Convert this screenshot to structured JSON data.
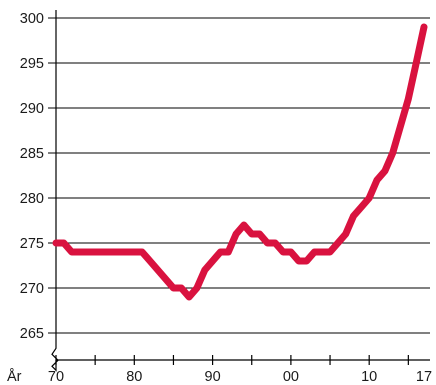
{
  "chart_data": {
    "type": "line",
    "title": "",
    "xlabel": "År",
    "ylabel": "",
    "x_tick_labels": [
      "70",
      "80",
      "90",
      "00",
      "10",
      "17"
    ],
    "x_tick_years": [
      1970,
      1980,
      1990,
      2000,
      2010,
      2017
    ],
    "y_ticks": [
      265,
      270,
      275,
      280,
      285,
      290,
      295,
      300
    ],
    "ylim": [
      262,
      300
    ],
    "xlim": [
      1970,
      2017
    ],
    "y_axis_break": true,
    "grid": "horizontal",
    "line_color": "#d9123f",
    "series": [
      {
        "x": [
          1970,
          1971,
          1972,
          1973,
          1974,
          1975,
          1976,
          1977,
          1978,
          1979,
          1980,
          1981,
          1982,
          1983,
          1984,
          1985,
          1986,
          1987,
          1988,
          1989,
          1990,
          1991,
          1992,
          1993,
          1994,
          1995,
          1996,
          1997,
          1998,
          1999,
          2000,
          2001,
          2002,
          2003,
          2004,
          2005,
          2006,
          2007,
          2008,
          2009,
          2010,
          2011,
          2012,
          2013,
          2014,
          2015,
          2016,
          2017
        ],
        "values": [
          275,
          275,
          274,
          274,
          274,
          274,
          274,
          274,
          274,
          274,
          274,
          274,
          273,
          272,
          271,
          270,
          270,
          269,
          270,
          272,
          273,
          274,
          274,
          276,
          277,
          276,
          276,
          275,
          275,
          274,
          274,
          273,
          273,
          274,
          274,
          274,
          275,
          276,
          278,
          279,
          280,
          282,
          283,
          285,
          288,
          291,
          295,
          299
        ]
      }
    ]
  }
}
